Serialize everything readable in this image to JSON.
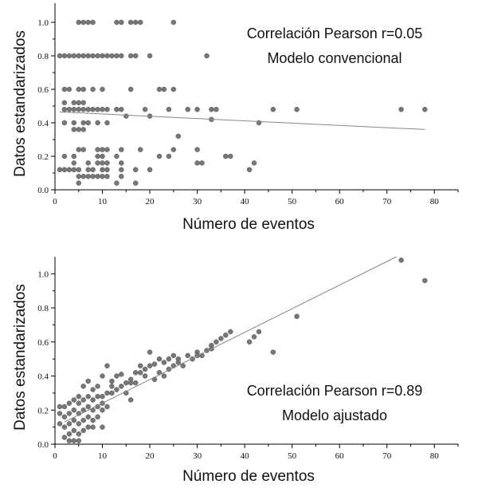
{
  "chart_data": [
    {
      "type": "scatter",
      "xlabel": "Número de eventos",
      "ylabel": "Datos estandarizados",
      "xlim": [
        0,
        85
      ],
      "ylim": [
        0,
        1.1
      ],
      "xticks": [
        0,
        10,
        20,
        30,
        40,
        50,
        60,
        70,
        80
      ],
      "yticks": [
        0.0,
        0.2,
        0.4,
        0.6,
        0.8,
        1.0
      ],
      "ytick_labels": [
        "0.0",
        "0.2",
        "0.4",
        "0.6",
        "0.8",
        "1.0"
      ],
      "annotations": [
        "Correlación Pearson r=0.05",
        "Modelo convencional"
      ],
      "trendline": {
        "x": [
          1,
          78
        ],
        "y": [
          0.465,
          0.36
        ]
      },
      "legend": "none",
      "grid": false,
      "marker_color": "#777777",
      "points": [
        [
          5,
          1.0
        ],
        [
          6,
          1.0
        ],
        [
          7,
          1.0
        ],
        [
          8,
          1.0
        ],
        [
          13,
          1.0
        ],
        [
          14,
          1.0
        ],
        [
          16,
          1.0
        ],
        [
          17,
          1.0
        ],
        [
          18,
          1.0
        ],
        [
          25,
          1.0
        ],
        [
          1,
          0.8
        ],
        [
          2,
          0.8
        ],
        [
          3,
          0.8
        ],
        [
          4,
          0.8
        ],
        [
          5,
          0.8
        ],
        [
          6,
          0.8
        ],
        [
          7,
          0.8
        ],
        [
          8,
          0.8
        ],
        [
          9,
          0.8
        ],
        [
          10,
          0.8
        ],
        [
          11,
          0.8
        ],
        [
          12,
          0.8
        ],
        [
          13,
          0.8
        ],
        [
          14,
          0.8
        ],
        [
          16,
          0.8
        ],
        [
          17,
          0.8
        ],
        [
          20,
          0.8
        ],
        [
          32,
          0.8
        ],
        [
          2,
          0.6
        ],
        [
          3,
          0.6
        ],
        [
          5,
          0.6
        ],
        [
          6,
          0.6
        ],
        [
          8,
          0.6
        ],
        [
          10,
          0.6
        ],
        [
          16,
          0.6
        ],
        [
          22,
          0.6
        ],
        [
          23,
          0.6
        ],
        [
          25,
          0.6
        ],
        [
          2,
          0.52
        ],
        [
          4,
          0.52
        ],
        [
          5,
          0.52
        ],
        [
          6,
          0.52
        ],
        [
          2,
          0.48
        ],
        [
          3,
          0.48
        ],
        [
          4,
          0.48
        ],
        [
          5,
          0.48
        ],
        [
          6,
          0.48
        ],
        [
          7,
          0.48
        ],
        [
          8,
          0.48
        ],
        [
          9,
          0.48
        ],
        [
          10,
          0.48
        ],
        [
          11,
          0.48
        ],
        [
          13,
          0.48
        ],
        [
          14,
          0.48
        ],
        [
          19,
          0.48
        ],
        [
          24,
          0.48
        ],
        [
          28,
          0.48
        ],
        [
          30,
          0.48
        ],
        [
          33,
          0.48
        ],
        [
          34,
          0.48
        ],
        [
          46,
          0.48
        ],
        [
          51,
          0.48
        ],
        [
          73,
          0.48
        ],
        [
          78,
          0.48
        ],
        [
          15,
          0.44
        ],
        [
          20,
          0.44
        ],
        [
          33,
          0.42
        ],
        [
          2,
          0.4
        ],
        [
          4,
          0.4
        ],
        [
          6,
          0.4
        ],
        [
          7,
          0.4
        ],
        [
          9,
          0.4
        ],
        [
          11,
          0.4
        ],
        [
          43,
          0.4
        ],
        [
          4,
          0.36
        ],
        [
          5,
          0.36
        ],
        [
          6,
          0.36
        ],
        [
          26,
          0.32
        ],
        [
          5,
          0.24
        ],
        [
          6,
          0.24
        ],
        [
          9,
          0.24
        ],
        [
          10,
          0.24
        ],
        [
          11,
          0.24
        ],
        [
          14,
          0.24
        ],
        [
          18,
          0.24
        ],
        [
          25,
          0.24
        ],
        [
          30,
          0.24
        ],
        [
          2,
          0.2
        ],
        [
          4,
          0.2
        ],
        [
          9,
          0.2
        ],
        [
          10,
          0.2
        ],
        [
          13,
          0.2
        ],
        [
          22,
          0.2
        ],
        [
          24,
          0.2
        ],
        [
          36,
          0.2
        ],
        [
          37,
          0.2
        ],
        [
          4,
          0.16
        ],
        [
          7,
          0.16
        ],
        [
          9,
          0.16
        ],
        [
          10,
          0.16
        ],
        [
          11,
          0.16
        ],
        [
          14,
          0.16
        ],
        [
          30,
          0.16
        ],
        [
          31,
          0.16
        ],
        [
          42,
          0.16
        ],
        [
          1,
          0.12
        ],
        [
          2,
          0.12
        ],
        [
          3,
          0.12
        ],
        [
          4,
          0.12
        ],
        [
          5,
          0.12
        ],
        [
          7,
          0.12
        ],
        [
          8,
          0.12
        ],
        [
          10,
          0.12
        ],
        [
          11,
          0.12
        ],
        [
          14,
          0.12
        ],
        [
          17,
          0.12
        ],
        [
          20,
          0.12
        ],
        [
          41,
          0.12
        ],
        [
          5,
          0.08
        ],
        [
          6,
          0.08
        ],
        [
          7,
          0.08
        ],
        [
          8,
          0.08
        ],
        [
          9,
          0.08
        ],
        [
          10,
          0.08
        ],
        [
          11,
          0.08
        ],
        [
          14,
          0.08
        ],
        [
          5,
          0.04
        ],
        [
          13,
          0.04
        ],
        [
          17,
          0.04
        ]
      ]
    },
    {
      "type": "scatter",
      "xlabel": "Número de eventos",
      "ylabel": "Datos estandarizados",
      "xlim": [
        0,
        85
      ],
      "ylim": [
        0,
        1.1
      ],
      "xticks": [
        0,
        10,
        20,
        30,
        40,
        50,
        60,
        70,
        80
      ],
      "yticks": [
        0.0,
        0.2,
        0.4,
        0.6,
        0.8,
        1.0
      ],
      "ytick_labels": [
        "0.0",
        "0.2",
        "0.4",
        "0.6",
        "0.8",
        "1.0"
      ],
      "annotations": [
        "Correlación Pearson r=0.89",
        "Modelo ajustado"
      ],
      "trendline": {
        "x": [
          2,
          72
        ],
        "y": [
          0.13,
          1.1
        ]
      },
      "legend": "none",
      "grid": false,
      "marker_color": "#777777",
      "points": [
        [
          73,
          1.08
        ],
        [
          78,
          0.96
        ],
        [
          51,
          0.75
        ],
        [
          46,
          0.54
        ],
        [
          43,
          0.66
        ],
        [
          42,
          0.63
        ],
        [
          41,
          0.6
        ],
        [
          37,
          0.66
        ],
        [
          36,
          0.64
        ],
        [
          35,
          0.62
        ],
        [
          34,
          0.6
        ],
        [
          33,
          0.58
        ],
        [
          33,
          0.56
        ],
        [
          32,
          0.55
        ],
        [
          30,
          0.54
        ],
        [
          30,
          0.52
        ],
        [
          28,
          0.52
        ],
        [
          26,
          0.5
        ],
        [
          25,
          0.52
        ],
        [
          24,
          0.5
        ],
        [
          23,
          0.48
        ],
        [
          22,
          0.5
        ],
        [
          21,
          0.47
        ],
        [
          20,
          0.54
        ],
        [
          20,
          0.46
        ],
        [
          19,
          0.44
        ],
        [
          18,
          0.46
        ],
        [
          18,
          0.42
        ],
        [
          17,
          0.42
        ],
        [
          16,
          0.38
        ],
        [
          16,
          0.36
        ],
        [
          15,
          0.36
        ],
        [
          14,
          0.34
        ],
        [
          13,
          0.32
        ],
        [
          12,
          0.3
        ],
        [
          12,
          0.34
        ],
        [
          11,
          0.3
        ],
        [
          11,
          0.22
        ],
        [
          11,
          0.46
        ],
        [
          10,
          0.28
        ],
        [
          10,
          0.24
        ],
        [
          10,
          0.2
        ],
        [
          10,
          0.1
        ],
        [
          10,
          0.4
        ],
        [
          9,
          0.34
        ],
        [
          9,
          0.28
        ],
        [
          9,
          0.22
        ],
        [
          9,
          0.16
        ],
        [
          8,
          0.32
        ],
        [
          8,
          0.26
        ],
        [
          8,
          0.2
        ],
        [
          8,
          0.14
        ],
        [
          8,
          0.1
        ],
        [
          7,
          0.28
        ],
        [
          7,
          0.22
        ],
        [
          7,
          0.16
        ],
        [
          7,
          0.1
        ],
        [
          7,
          0.37
        ],
        [
          6,
          0.34
        ],
        [
          6,
          0.26
        ],
        [
          6,
          0.2
        ],
        [
          6,
          0.14
        ],
        [
          6,
          0.08
        ],
        [
          5,
          0.28
        ],
        [
          5,
          0.24
        ],
        [
          5,
          0.18
        ],
        [
          5,
          0.12
        ],
        [
          5,
          0.06
        ],
        [
          5,
          0.02
        ],
        [
          4,
          0.26
        ],
        [
          4,
          0.2
        ],
        [
          4,
          0.14
        ],
        [
          4,
          0.08
        ],
        [
          4,
          0.02
        ],
        [
          3,
          0.24
        ],
        [
          3,
          0.18
        ],
        [
          3,
          0.12
        ],
        [
          3,
          0.06
        ],
        [
          3,
          0.02
        ],
        [
          2,
          0.22
        ],
        [
          2,
          0.16
        ],
        [
          2,
          0.1
        ],
        [
          2,
          0.04
        ],
        [
          1,
          0.22
        ],
        [
          1,
          0.18
        ],
        [
          1,
          0.12
        ],
        [
          12,
          0.37
        ],
        [
          13,
          0.4
        ],
        [
          14,
          0.41
        ],
        [
          15,
          0.3
        ],
        [
          16,
          0.26
        ],
        [
          17,
          0.36
        ],
        [
          19,
          0.4
        ],
        [
          21,
          0.38
        ],
        [
          22,
          0.42
        ],
        [
          23,
          0.4
        ],
        [
          24,
          0.44
        ],
        [
          25,
          0.46
        ],
        [
          26,
          0.48
        ],
        [
          27,
          0.46
        ],
        [
          29,
          0.5
        ],
        [
          31,
          0.52
        ]
      ]
    }
  ]
}
